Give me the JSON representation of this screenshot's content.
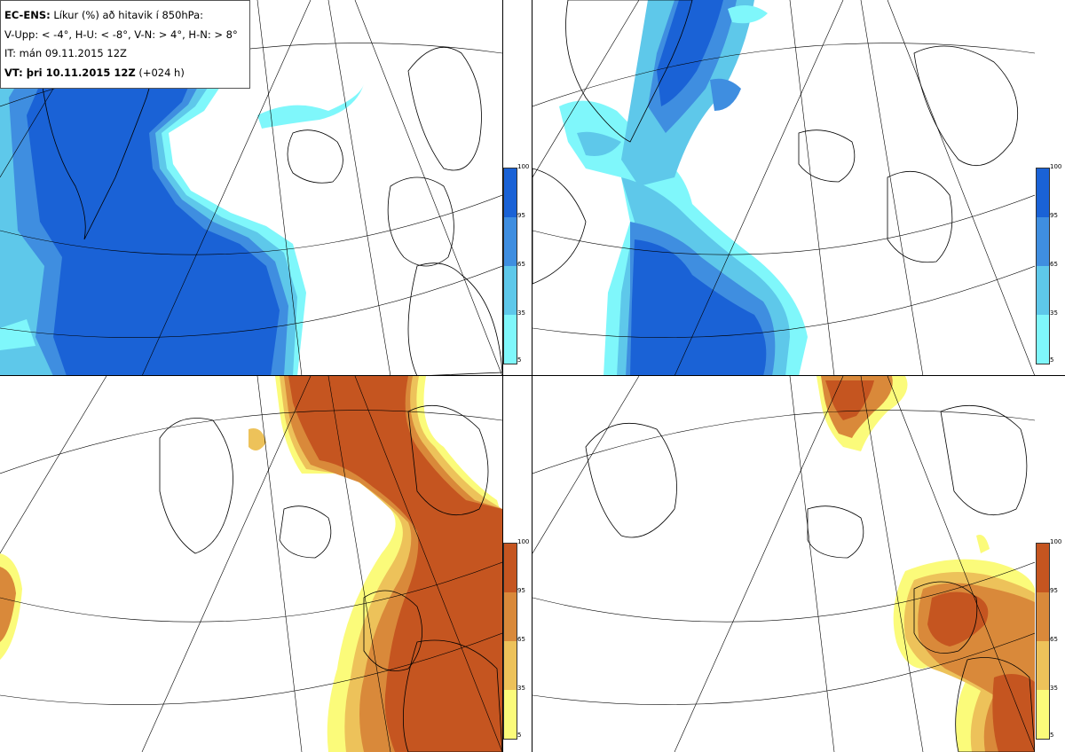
{
  "info_box": {
    "title_bold": "EC-ENS:",
    "title_rest": "Líkur (%) að hitavik í 850hPa:",
    "thresholds": "V-Upp: < -4°, H-U: < -8°, V-N: > 4°, H-N: > 8°",
    "init_time": "IT: mán 09.11.2015 12Z",
    "valid_bold": "VT: þri 10.11.2015 12Z",
    "valid_rest": "(+024 h)"
  },
  "colorbars": {
    "ticks": [
      "100",
      "95",
      "65",
      "35",
      "5"
    ],
    "cold_colors": [
      "#1a62d6",
      "#3f8ee0",
      "#5ec8ea",
      "#7ff7fb"
    ],
    "warm_colors": [
      "#c55520",
      "#d9893a",
      "#edc25a",
      "#fbfb7a"
    ]
  },
  "panels": [
    {
      "id": "vestur-upp",
      "scheme": "cold"
    },
    {
      "id": "haust-upp",
      "scheme": "cold"
    },
    {
      "id": "vestur-nidur",
      "scheme": "warm"
    },
    {
      "id": "haust-nidur",
      "scheme": "warm"
    }
  ]
}
